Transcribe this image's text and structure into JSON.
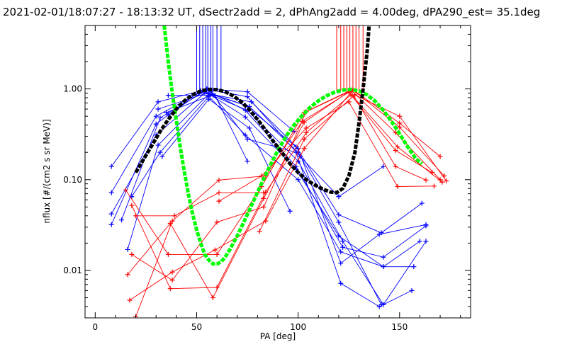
{
  "chart_data": {
    "type": "scatter",
    "title": "2021-02-01/18:07:27 - 18:13:32 UT, dSectr2add = 2, dPhAng2add = 4.00deg, dPA290_est=  35.1deg",
    "xlabel": "PA [deg]",
    "ylabel": "nflux [#/(cm2 s sr MeV)]",
    "xlim": [
      -5,
      185
    ],
    "ylim": [
      0.003,
      5.0
    ],
    "y_scale": "log",
    "x_ticks": [
      0,
      50,
      100,
      150
    ],
    "x_tick_labels": [
      "0",
      "50",
      "100",
      "150"
    ],
    "y_ticks": [
      0.01,
      0.1,
      1.0
    ],
    "y_tick_labels": [
      "0.01",
      "0.10",
      "1.00"
    ],
    "grid": false,
    "legend": "none",
    "colors": {
      "blue": "#0000ff",
      "red": "#ff0000",
      "black": "#000000",
      "green": "#00ff00"
    },
    "vertical_marker_lines": {
      "blue_x": [
        50,
        51.5,
        53,
        54.5,
        55.5,
        57,
        58,
        60,
        62
      ],
      "red_x": [
        119,
        121,
        122.5,
        124,
        125.5,
        127,
        128.5,
        130,
        132
      ]
    },
    "series": [
      {
        "color": "blue",
        "marker": "+",
        "points": [
          [
            8,
            0.032
          ],
          [
            30,
            0.41
          ],
          [
            52,
            0.96
          ],
          [
            75,
            0.58
          ],
          [
            100,
            0.16
          ],
          [
            122,
            0.021
          ],
          [
            142,
            0.0042
          ],
          [
            163,
            0.021
          ]
        ]
      },
      {
        "color": "blue",
        "marker": "+",
        "points": [
          [
            8,
            0.072
          ],
          [
            30,
            0.5
          ],
          [
            53,
            0.95
          ],
          [
            76,
            0.64
          ],
          [
            100,
            0.2
          ],
          [
            120,
            0.034
          ],
          [
            141,
            0.0042
          ]
        ]
      },
      {
        "color": "blue",
        "marker": "+",
        "points": [
          [
            8,
            0.042
          ],
          [
            30,
            0.31
          ],
          [
            54,
            0.9
          ],
          [
            77,
            0.72
          ],
          [
            100,
            0.22
          ],
          [
            121,
            0.012
          ],
          [
            140,
            0.025
          ],
          [
            163,
            0.032
          ]
        ]
      },
      {
        "color": "blue",
        "marker": "+",
        "points": [
          [
            8,
            0.14
          ],
          [
            31,
            0.72
          ],
          [
            55,
            0.99
          ],
          [
            75,
            0.82
          ],
          [
            101,
            0.18
          ],
          [
            120,
            0.065
          ],
          [
            142,
            0.14
          ]
        ]
      },
      {
        "color": "blue",
        "marker": "+",
        "points": [
          [
            13,
            0.036
          ],
          [
            32,
            0.48
          ],
          [
            55,
            0.97
          ],
          [
            74,
            0.58
          ],
          [
            99,
            0.14
          ],
          [
            122,
            0.018
          ],
          [
            142,
            0.014
          ],
          [
            163,
            0.031
          ]
        ]
      },
      {
        "color": "blue",
        "marker": "+",
        "points": [
          [
            16,
            0.017
          ],
          [
            31,
            0.24
          ],
          [
            56,
            0.88
          ],
          [
            74,
            0.49
          ],
          [
            99,
            0.13
          ],
          [
            120,
            0.024
          ],
          [
            142,
            0.011
          ],
          [
            157,
            0.011
          ]
        ]
      },
      {
        "color": "blue",
        "marker": "+",
        "points": [
          [
            18,
            0.065
          ],
          [
            32,
            0.2
          ],
          [
            56,
            0.83
          ],
          [
            74,
            0.31
          ],
          [
            100,
            0.1
          ],
          [
            121,
            0.016
          ],
          [
            142,
            0.011
          ],
          [
            160,
            0.021
          ]
        ]
      },
      {
        "color": "blue",
        "marker": "+",
        "points": [
          [
            31,
            0.6
          ],
          [
            57,
            0.93
          ],
          [
            75,
            0.28
          ],
          [
            99,
            0.2
          ],
          [
            121,
            0.0072
          ],
          [
            140,
            0.004
          ],
          [
            156,
            0.006
          ]
        ]
      },
      {
        "color": "blue",
        "marker": "+",
        "points": [
          [
            35,
            0.55
          ],
          [
            58,
            0.86
          ],
          [
            74,
            0.66
          ],
          [
            99,
            0.23
          ],
          [
            120,
            0.041
          ],
          [
            141,
            0.026
          ],
          [
            161,
            0.055
          ]
        ]
      },
      {
        "color": "blue",
        "marker": "+",
        "points": [
          [
            36,
            0.85
          ],
          [
            59,
            0.85
          ],
          [
            75,
            0.16
          ]
        ]
      },
      {
        "color": "blue",
        "marker": "+",
        "points": [
          [
            33,
            0.18
          ],
          [
            56,
            0.77
          ],
          [
            76,
            0.37
          ],
          [
            96,
            0.045
          ]
        ]
      },
      {
        "color": "blue",
        "marker": "+",
        "points": [
          [
            36,
            0.52
          ],
          [
            55,
            1.0
          ],
          [
            75,
            0.93
          ],
          [
            98,
            0.34
          ]
        ]
      },
      {
        "color": "red",
        "marker": "+",
        "points": [
          [
            15,
            0.077
          ],
          [
            36,
            0.015
          ],
          [
            60,
            0.015
          ],
          [
            82,
            0.084
          ],
          [
            103,
            0.55
          ],
          [
            126,
            0.97
          ],
          [
            148,
            0.33
          ],
          [
            170,
            0.1
          ]
        ]
      },
      {
        "color": "red",
        "marker": "+",
        "points": [
          [
            16,
            0.009
          ],
          [
            37,
            0.033
          ],
          [
            58,
            0.005
          ],
          [
            83,
            0.062
          ],
          [
            103,
            0.43
          ],
          [
            125,
            0.93
          ],
          [
            149,
            0.23
          ],
          [
            171,
            0.094
          ]
        ]
      },
      {
        "color": "red",
        "marker": "+",
        "points": [
          [
            17,
            0.0047
          ],
          [
            38,
            0.0096
          ],
          [
            59,
            0.0168
          ],
          [
            84,
            0.035
          ],
          [
            103,
            0.22
          ],
          [
            127,
            0.97
          ],
          [
            150,
            0.38
          ],
          [
            172,
            0.11
          ]
        ]
      },
      {
        "color": "red",
        "marker": "+",
        "points": [
          [
            18,
            0.052
          ],
          [
            37,
            0.0063
          ],
          [
            60,
            0.0065
          ],
          [
            84,
            0.073
          ],
          [
            104,
            0.33
          ],
          [
            126,
            0.86
          ],
          [
            148,
            0.21
          ],
          [
            166,
            0.12
          ]
        ]
      },
      {
        "color": "red",
        "marker": "+",
        "points": [
          [
            18,
            0.015
          ],
          [
            38,
            0.0078
          ],
          [
            60,
            0.034
          ],
          [
            83,
            0.05
          ],
          [
            104,
            0.56
          ],
          [
            127,
            0.98
          ],
          [
            150,
            0.42
          ],
          [
            170,
            0.18
          ]
        ]
      },
      {
        "color": "red",
        "marker": "+",
        "points": [
          [
            20,
            0.04
          ],
          [
            39,
            0.04
          ],
          [
            61,
            0.072
          ],
          [
            83,
            0.072
          ]
        ]
      },
      {
        "color": "red",
        "marker": "+",
        "points": [
          [
            61,
            0.058
          ],
          [
            82,
            0.11
          ],
          [
            104,
            0.37
          ],
          [
            125,
            0.72
          ],
          [
            149,
            0.084
          ],
          [
            167,
            0.085
          ]
        ]
      },
      {
        "color": "red",
        "marker": "+",
        "points": [
          [
            20,
            0.0031
          ],
          [
            38,
            0.035
          ],
          [
            61,
            0.099
          ],
          [
            84,
            0.11
          ],
          [
            102,
            0.44
          ],
          [
            126,
            0.95
          ],
          [
            148,
            0.14
          ],
          [
            163,
            0.099
          ]
        ]
      },
      {
        "color": "red",
        "marker": "+",
        "points": [
          [
            81,
            0.027
          ],
          [
            103,
            0.28
          ],
          [
            128,
            0.86
          ],
          [
            150,
            0.5
          ],
          [
            173,
            0.097
          ]
        ]
      }
    ],
    "curves": [
      {
        "color": "green",
        "style": "dashed-thick",
        "points": [
          [
            34,
            5.0
          ],
          [
            36,
            2.0
          ],
          [
            38,
            0.9
          ],
          [
            40,
            0.45
          ],
          [
            42,
            0.22
          ],
          [
            44,
            0.12
          ],
          [
            46,
            0.068
          ],
          [
            48,
            0.042
          ],
          [
            50,
            0.028
          ],
          [
            52,
            0.02
          ],
          [
            54,
            0.015
          ],
          [
            56,
            0.013
          ],
          [
            58,
            0.0118
          ],
          [
            60,
            0.0118
          ],
          [
            62,
            0.0124
          ],
          [
            64,
            0.014
          ],
          [
            66,
            0.0165
          ],
          [
            70,
            0.024
          ],
          [
            74,
            0.037
          ],
          [
            78,
            0.058
          ],
          [
            82,
            0.091
          ],
          [
            86,
            0.14
          ],
          [
            90,
            0.21
          ],
          [
            94,
            0.3
          ],
          [
            98,
            0.4
          ],
          [
            102,
            0.51
          ],
          [
            106,
            0.63
          ],
          [
            110,
            0.74
          ],
          [
            114,
            0.84
          ],
          [
            118,
            0.92
          ],
          [
            122,
            0.97
          ],
          [
            126,
            0.99
          ],
          [
            130,
            0.95
          ],
          [
            134,
            0.86
          ],
          [
            138,
            0.73
          ],
          [
            142,
            0.58
          ],
          [
            146,
            0.44
          ],
          [
            150,
            0.32
          ],
          [
            154,
            0.23
          ],
          [
            158,
            0.17
          ],
          [
            161,
            0.15
          ]
        ]
      },
      {
        "color": "black",
        "style": "dashed-thick",
        "points": [
          [
            20,
            0.12
          ],
          [
            24,
            0.17
          ],
          [
            28,
            0.24
          ],
          [
            32,
            0.34
          ],
          [
            36,
            0.46
          ],
          [
            40,
            0.6
          ],
          [
            44,
            0.74
          ],
          [
            48,
            0.86
          ],
          [
            52,
            0.95
          ],
          [
            56,
            0.99
          ],
          [
            60,
            0.98
          ],
          [
            64,
            0.93
          ],
          [
            68,
            0.84
          ],
          [
            72,
            0.72
          ],
          [
            76,
            0.59
          ],
          [
            80,
            0.46
          ],
          [
            84,
            0.35
          ],
          [
            88,
            0.26
          ],
          [
            92,
            0.2
          ],
          [
            96,
            0.15
          ],
          [
            100,
            0.12
          ],
          [
            104,
            0.1
          ],
          [
            108,
            0.088
          ],
          [
            112,
            0.079
          ],
          [
            116,
            0.073
          ],
          [
            119,
            0.072
          ],
          [
            122,
            0.08
          ],
          [
            125,
            0.11
          ],
          [
            128,
            0.2
          ],
          [
            130,
            0.42
          ],
          [
            132,
            1.0
          ],
          [
            134,
            2.6
          ],
          [
            135,
            5.0
          ]
        ]
      }
    ]
  }
}
